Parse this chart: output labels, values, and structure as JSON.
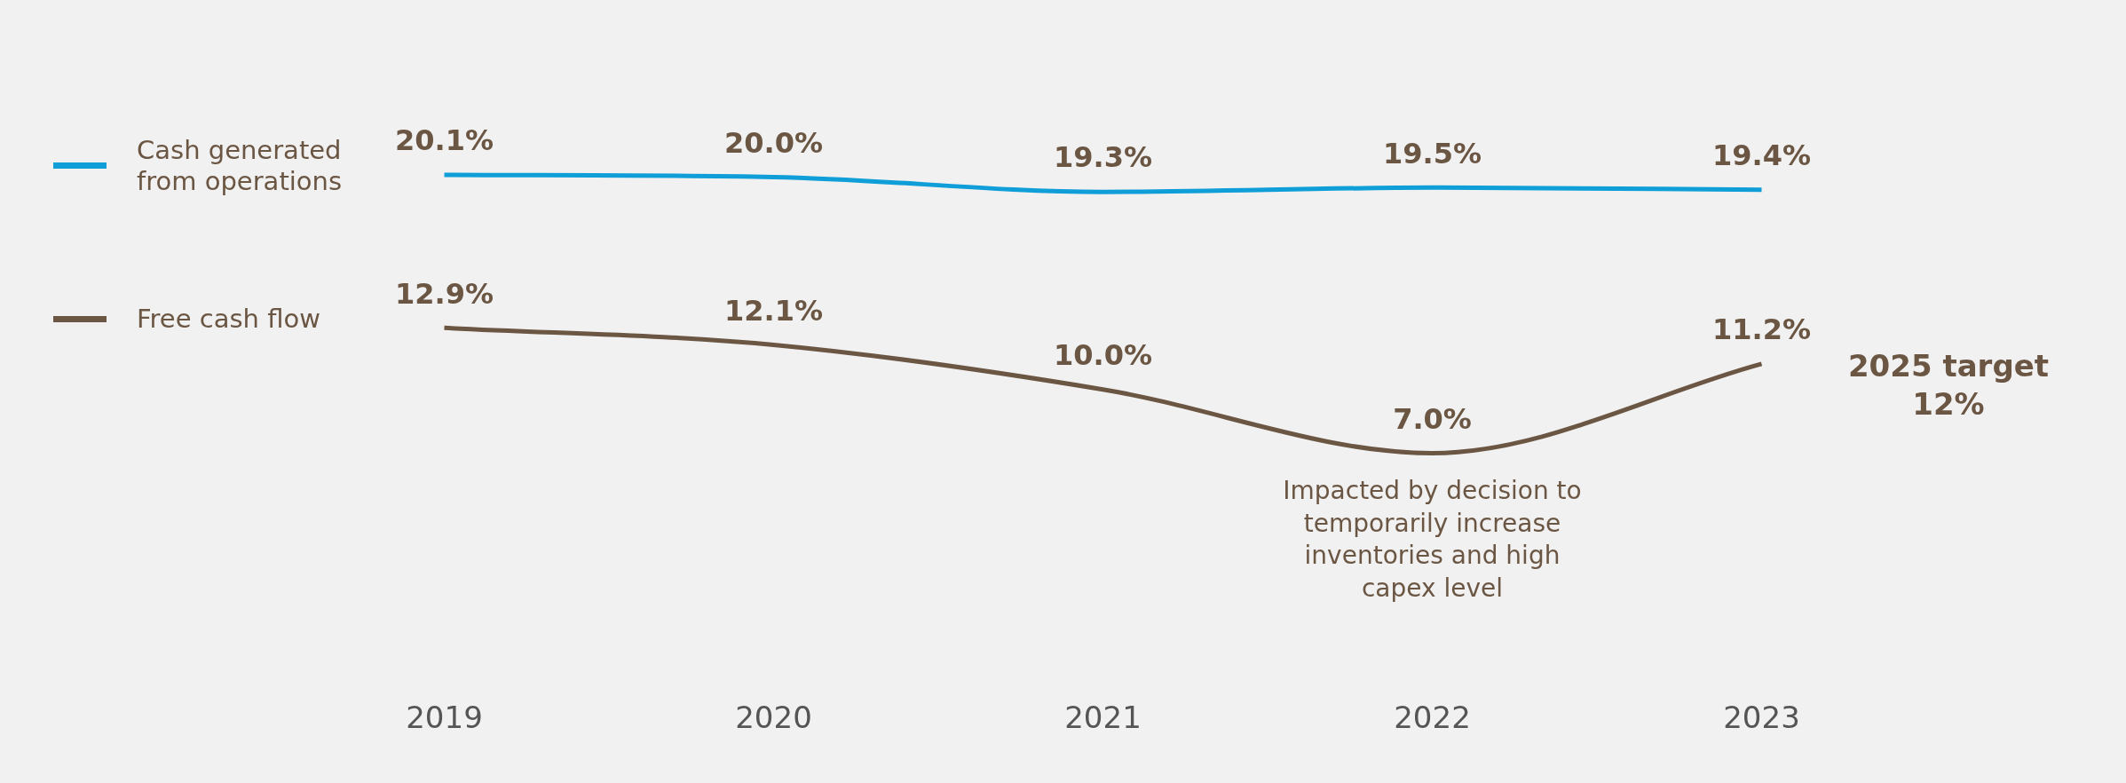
{
  "chart_data": {
    "type": "line",
    "categories": [
      "2019",
      "2020",
      "2021",
      "2022",
      "2023"
    ],
    "series": [
      {
        "name": "Cash generated from operations",
        "color": "#0f9ed8",
        "values": [
          20.1,
          20.0,
          19.3,
          19.5,
          19.4
        ],
        "value_labels": [
          "20.1%",
          "20.0%",
          "19.3%",
          "19.5%",
          "19.4%"
        ]
      },
      {
        "name": "Free cash flow",
        "color": "#6b5643",
        "values": [
          12.9,
          12.1,
          10.0,
          7.0,
          11.2
        ],
        "value_labels": [
          "12.9%",
          "12.1%",
          "10.0%",
          "7.0%",
          "11.2%"
        ]
      }
    ],
    "annotations": [
      {
        "text": "Impacted by decision to temporarily increase inventories and high capex level",
        "x": "2022",
        "y": 7.0
      },
      "2025 target 12%"
    ],
    "legend": "left",
    "marker": "none",
    "line_style": "solid",
    "grid": false,
    "tick_labels": "x"
  }
}
